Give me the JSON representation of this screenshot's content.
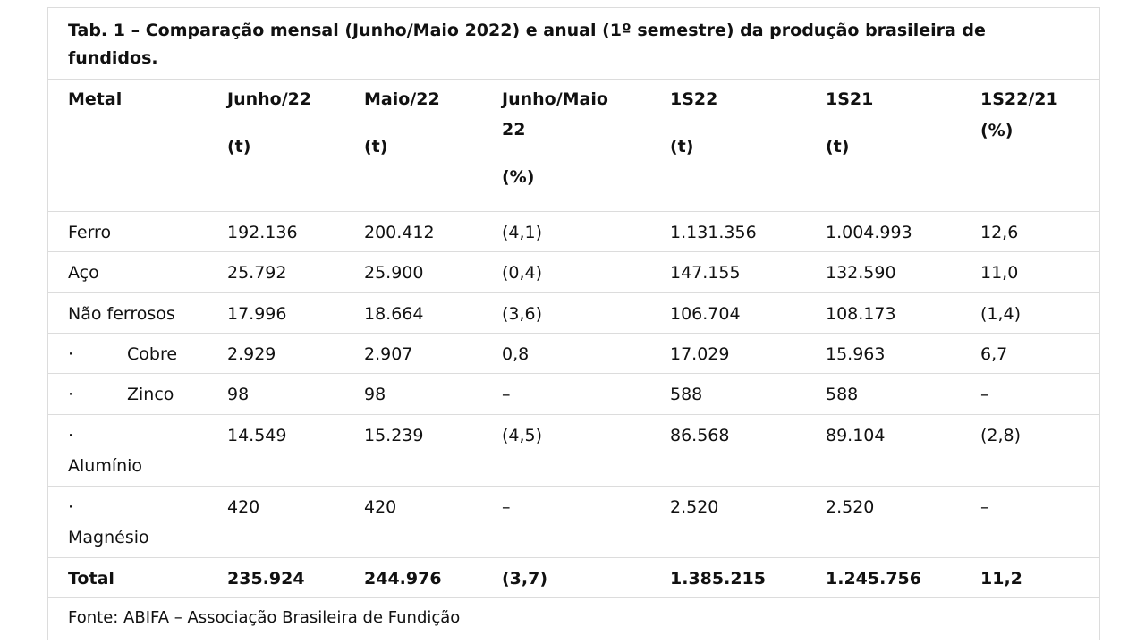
{
  "table": {
    "caption": "Tab. 1 – Comparação mensal (Junho/Maio 2022) e anual (1º semestre) da produção brasileira de fundidos.",
    "caption_line1": "Tab. 1 – Comparação mensal (Junho/Maio 2022) e anual (1º semestre) da produção brasileira de",
    "caption_line2": "fundidos.",
    "headers": [
      [
        "Metal"
      ],
      [
        "Junho/22",
        "(t)"
      ],
      [
        "Maio/22",
        "(t)"
      ],
      [
        "Junho/Maio",
        "22",
        "(%)"
      ],
      [
        "1S22",
        "(t)"
      ],
      [
        "1S21",
        "(t)"
      ],
      [
        "1S22/21",
        "(%)"
      ]
    ],
    "rows": [
      {
        "bullet": "",
        "metal": "Ferro",
        "values": [
          "192.136",
          "200.412",
          "(4,1)",
          "1.131.356",
          "1.004.993",
          "12,6"
        ]
      },
      {
        "bullet": "",
        "metal": "Aço",
        "values": [
          "25.792",
          "25.900",
          "(0,4)",
          "147.155",
          "132.590",
          "11,0"
        ]
      },
      {
        "bullet": "",
        "metal": "Não ferrosos",
        "values": [
          "17.996",
          "18.664",
          "(3,6)",
          "106.704",
          "108.173",
          "(1,4)"
        ]
      },
      {
        "bullet": "·",
        "metal": "Cobre",
        "values": [
          "2.929",
          "2.907",
          "0,8",
          "17.029",
          "15.963",
          "6,7"
        ]
      },
      {
        "bullet": "·",
        "metal": "Zinco",
        "values": [
          "98",
          "98",
          "–",
          "588",
          "588",
          "–"
        ]
      },
      {
        "bullet": "·",
        "metal": "Alumínio",
        "values": [
          "14.549",
          "15.239",
          "(4,5)",
          "86.568",
          "89.104",
          "(2,8)"
        ]
      },
      {
        "bullet": "·",
        "metal": "Magnésio",
        "values": [
          "420",
          "420",
          "–",
          "2.520",
          "2.520",
          "–"
        ]
      }
    ],
    "total": {
      "label": "Total",
      "values": [
        "235.924",
        "244.976",
        "(3,7)",
        "1.385.215",
        "1.245.756",
        "11,2"
      ]
    },
    "source": "Fonte: ABIFA – Associação Brasileira de Fundição"
  }
}
